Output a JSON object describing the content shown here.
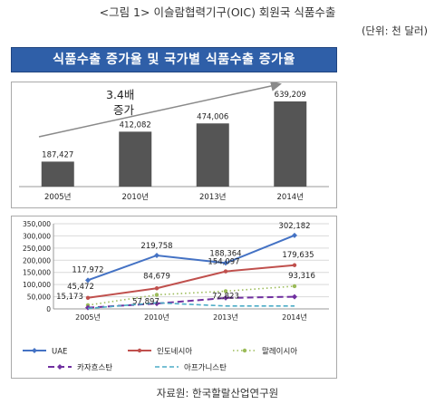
{
  "figure_title": "<그림 1> 이슬람협력기구(OIC) 회원국 식품수출",
  "unit": "(단위: 천 달러)",
  "banner": "식품수출 증가율 및 국가별 식품수출 증가율",
  "source": "자료원: 한국할랄산업연구원",
  "growth_annotation": [
    "3.4배",
    "증가"
  ],
  "colors": {
    "banner": "#2f5fa8",
    "bar": "#555555",
    "UAE": "#4472c4",
    "indonesia": "#c0504d",
    "malaysia": "#9bbb59",
    "kazakhstan": "#7030a0",
    "afghanistan": "#4bacc6"
  },
  "chart_data": [
    {
      "type": "bar",
      "categories": [
        "2005년",
        "2010년",
        "2013년",
        "2014년"
      ],
      "values": [
        187427,
        412082,
        474006,
        639209
      ],
      "value_labels": [
        "187,427",
        "412,082",
        "474,006",
        "639,209"
      ],
      "ylim": [
        0,
        700000
      ]
    },
    {
      "type": "line",
      "categories": [
        "2005년",
        "2010년",
        "2013년",
        "2014년"
      ],
      "ylim": [
        0,
        350000
      ],
      "yticks": [
        "0",
        "50,000",
        "100,000",
        "150,000",
        "200,000",
        "250,000",
        "300,000",
        "350,000"
      ],
      "legend_position": "bottom",
      "series": [
        {
          "name": "UAE",
          "values": [
            117972,
            219758,
            188364,
            302182
          ],
          "labels": [
            "117,972",
            "219,758",
            "188,364",
            "302,182"
          ]
        },
        {
          "name": "인도네시아",
          "values": [
            45472,
            84679,
            154097,
            179635
          ],
          "labels": [
            "45,472",
            "84,679",
            "154,097",
            "179,635"
          ]
        },
        {
          "name": "말레이시아",
          "values": [
            15173,
            57897,
            72823,
            93316
          ],
          "labels": [
            "15,173",
            "57,897",
            "72,823",
            "93,316"
          ]
        },
        {
          "name": "카자흐스탄",
          "values": [
            5000,
            22000,
            45000,
            50000
          ],
          "labels": []
        },
        {
          "name": "아프가니스탄",
          "values": [
            2000,
            25000,
            12000,
            12000
          ],
          "labels": []
        }
      ]
    }
  ]
}
